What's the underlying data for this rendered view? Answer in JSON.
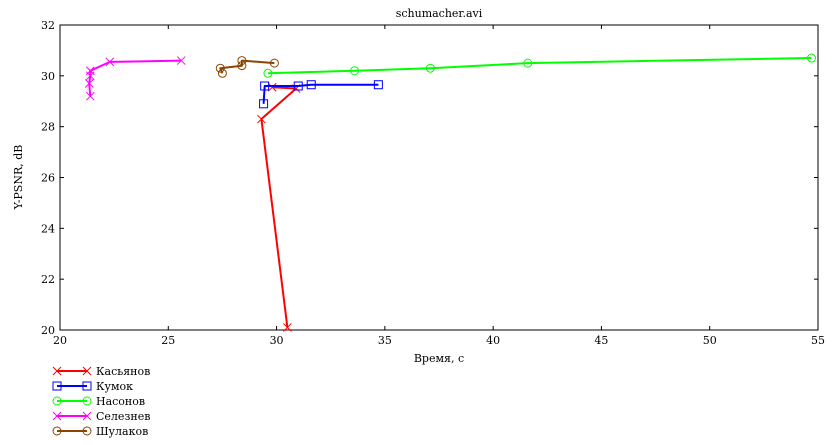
{
  "chart_data": {
    "type": "line",
    "title": "schumacher.avi",
    "xlabel": "Время, с",
    "ylabel": "Y-PSNR, dB",
    "xlim": [
      20,
      55
    ],
    "ylim": [
      20,
      32
    ],
    "xticks": [
      20,
      25,
      30,
      35,
      40,
      45,
      50,
      55
    ],
    "yticks": [
      20,
      22,
      24,
      26,
      28,
      30,
      32
    ],
    "grid": false,
    "legend_position": "bottom-left",
    "series": [
      {
        "name": "Касьянов",
        "color": "#ff0000",
        "marker": "x",
        "x": [
          30.5,
          29.3,
          30.9,
          29.8
        ],
        "y": [
          20.1,
          28.3,
          29.5,
          29.55
        ]
      },
      {
        "name": "Кумок",
        "color": "#0000ff",
        "marker": "square",
        "x": [
          29.4,
          29.45,
          31.0,
          31.6,
          34.7
        ],
        "y": [
          28.9,
          29.6,
          29.6,
          29.65,
          29.65
        ]
      },
      {
        "name": "Насонов",
        "color": "#00ff00",
        "marker": "circle",
        "x": [
          29.6,
          33.6,
          37.1,
          41.6,
          54.7
        ],
        "y": [
          30.1,
          30.2,
          30.3,
          30.5,
          30.7
        ]
      },
      {
        "name": "Селезнев",
        "color": "#ff00ff",
        "marker": "x",
        "x": [
          21.4,
          21.35,
          21.4,
          21.4,
          22.3,
          25.6
        ],
        "y": [
          29.2,
          29.7,
          30.0,
          30.2,
          30.55,
          30.6
        ]
      },
      {
        "name": "Шулаков",
        "color": "#8b4500",
        "marker": "circle",
        "x": [
          27.5,
          27.4,
          28.4,
          28.4,
          29.9
        ],
        "y": [
          30.1,
          30.3,
          30.4,
          30.6,
          30.5
        ]
      }
    ]
  }
}
